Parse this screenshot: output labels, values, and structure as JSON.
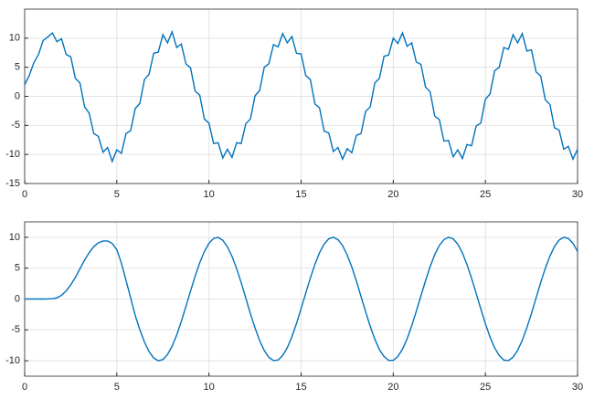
{
  "chart_data": [
    {
      "type": "line",
      "grid": true,
      "xlim": [
        0,
        30
      ],
      "xticks": [
        0,
        5,
        10,
        15,
        20,
        25,
        30
      ],
      "ylim": [
        -15,
        15
      ],
      "yticks": [
        -15,
        -10,
        -5,
        0,
        5,
        10
      ],
      "x": [
        0,
        0.25,
        0.5,
        0.75,
        1,
        1.25,
        1.5,
        1.75,
        2,
        2.25,
        2.5,
        2.75,
        3,
        3.25,
        3.5,
        3.75,
        4,
        4.25,
        4.5,
        4.75,
        5,
        5.25,
        5.5,
        5.75,
        6,
        6.25,
        6.5,
        6.75,
        7,
        7.25,
        7.5,
        7.75,
        8,
        8.25,
        8.5,
        8.75,
        9,
        9.25,
        9.5,
        9.75,
        10,
        10.25,
        10.5,
        10.75,
        11,
        11.25,
        11.5,
        11.75,
        12,
        12.25,
        12.5,
        12.75,
        13,
        13.25,
        13.5,
        13.75,
        14,
        14.25,
        14.5,
        14.75,
        15,
        15.25,
        15.5,
        15.75,
        16,
        16.25,
        16.5,
        16.75,
        17,
        17.25,
        17.5,
        17.75,
        18,
        18.25,
        18.5,
        18.75,
        19,
        19.25,
        19.5,
        19.75,
        20,
        20.25,
        20.5,
        20.75,
        21,
        21.25,
        21.5,
        21.75,
        22,
        22.25,
        22.5,
        22.75,
        23,
        23.25,
        23.5,
        23.75,
        24,
        24.25,
        24.5,
        24.75,
        25,
        25.25,
        25.5,
        25.75,
        26,
        26.25,
        26.5,
        26.75,
        27,
        27.25,
        27.5,
        27.75,
        28,
        28.25,
        28.5,
        28.75,
        29,
        29.25,
        29.5,
        29.75,
        30
      ],
      "series": [
        {
          "color": "#0072bd",
          "values": [
            2,
            3.6,
            5.8,
            7.2,
            9.6,
            10.2,
            10.9,
            9.4,
            9.9,
            7.2,
            6.8,
            3.1,
            2.3,
            -1.8,
            -2.9,
            -6.4,
            -6.9,
            -9.6,
            -8.8,
            -11.2,
            -9.2,
            -9.8,
            -6.4,
            -5.9,
            -2.1,
            -1.2,
            2.9,
            3.8,
            7.4,
            7.6,
            10.6,
            9.2,
            11.1,
            8.4,
            9.0,
            5.6,
            4.9,
            0.9,
            0.2,
            -3.9,
            -4.6,
            -8.1,
            -8.0,
            -10.6,
            -9.1,
            -10.5,
            -8.0,
            -8.1,
            -4.7,
            -3.9,
            0.1,
            1.0,
            5.0,
            5.6,
            8.9,
            8.5,
            10.8,
            9.2,
            10.3,
            7.4,
            7.3,
            3.6,
            2.9,
            -1.3,
            -2.0,
            -6.0,
            -6.3,
            -9.5,
            -8.8,
            -10.8,
            -9.0,
            -9.7,
            -6.7,
            -6.4,
            -2.6,
            -1.8,
            2.3,
            3.1,
            6.9,
            7.1,
            10.0,
            9.1,
            10.9,
            8.6,
            9.2,
            5.9,
            5.5,
            1.6,
            0.8,
            -3.4,
            -4.0,
            -7.7,
            -7.6,
            -10.4,
            -9.2,
            -10.7,
            -8.3,
            -8.5,
            -5.1,
            -4.6,
            -0.5,
            0.4,
            4.4,
            5.0,
            8.4,
            8.1,
            10.6,
            9.2,
            10.8,
            7.8,
            8.0,
            4.2,
            3.5,
            -0.6,
            -1.4,
            -5.4,
            -5.8,
            -9.1,
            -8.6,
            -10.8,
            -9.1
          ]
        }
      ]
    },
    {
      "type": "line",
      "grid": true,
      "xlim": [
        0,
        30
      ],
      "xticks": [
        0,
        5,
        10,
        15,
        20,
        25,
        30
      ],
      "ylim": [
        -12.5,
        12.5
      ],
      "yticks": [
        -10,
        -5,
        0,
        5,
        10
      ],
      "x": [
        0,
        0.25,
        0.5,
        0.75,
        1,
        1.25,
        1.5,
        1.75,
        2,
        2.25,
        2.5,
        2.75,
        3,
        3.25,
        3.5,
        3.75,
        4,
        4.25,
        4.5,
        4.75,
        5,
        5.25,
        5.5,
        5.75,
        6,
        6.25,
        6.5,
        6.75,
        7,
        7.25,
        7.5,
        7.75,
        8,
        8.25,
        8.5,
        8.75,
        9,
        9.25,
        9.5,
        9.75,
        10,
        10.25,
        10.5,
        10.75,
        11,
        11.25,
        11.5,
        11.75,
        12,
        12.25,
        12.5,
        12.75,
        13,
        13.25,
        13.5,
        13.75,
        14,
        14.25,
        14.5,
        14.75,
        15,
        15.25,
        15.5,
        15.75,
        16,
        16.25,
        16.5,
        16.75,
        17,
        17.25,
        17.5,
        17.75,
        18,
        18.25,
        18.5,
        18.75,
        19,
        19.25,
        19.5,
        19.75,
        20,
        20.25,
        20.5,
        20.75,
        21,
        21.25,
        21.5,
        21.75,
        22,
        22.25,
        22.5,
        22.75,
        23,
        23.25,
        23.5,
        23.75,
        24,
        24.25,
        24.5,
        24.75,
        25,
        25.25,
        25.5,
        25.75,
        26,
        26.25,
        26.5,
        26.75,
        27,
        27.25,
        27.5,
        27.75,
        28,
        28.25,
        28.5,
        28.75,
        29,
        29.25,
        29.5,
        29.75,
        30
      ],
      "series": [
        {
          "color": "#0072bd",
          "values": [
            0,
            0,
            0,
            0,
            0,
            0.01,
            0.05,
            0.2,
            0.6,
            1.3,
            2.3,
            3.5,
            4.9,
            6.3,
            7.5,
            8.5,
            9.1,
            9.4,
            9.4,
            9.0,
            8.0,
            5.8,
            3.0,
            0.2,
            -2.67,
            -4.98,
            -6.97,
            -8.53,
            -9.55,
            -10.0,
            -9.8,
            -9.0,
            -7.65,
            -5.82,
            -3.62,
            -1.21,
            1.29,
            3.71,
            5.88,
            7.69,
            9.04,
            9.82,
            9.98,
            9.52,
            8.48,
            6.92,
            4.93,
            2.63,
            0.13,
            -2.37,
            -4.69,
            -6.73,
            -8.34,
            -9.45,
            -9.97,
            -9.89,
            -9.14,
            -7.88,
            -6.12,
            -3.96,
            -1.55,
            0.94,
            3.39,
            5.63,
            7.51,
            8.91,
            9.76,
            10.0,
            9.62,
            8.66,
            7.14,
            5.19,
            2.91,
            0.42,
            -2.05,
            -4.42,
            -6.5,
            -8.19,
            -9.33,
            -9.94,
            -9.93,
            -9.3,
            -8.14,
            -6.45,
            -4.35,
            -1.99,
            0.5,
            2.96,
            5.23,
            7.18,
            8.68,
            9.63,
            10.0,
            9.76,
            8.89,
            7.48,
            5.59,
            3.35,
            0.9,
            -1.59,
            -3.99,
            -6.15,
            -7.91,
            -9.15,
            -9.9,
            -9.97,
            -9.43,
            -8.31,
            -6.7,
            -4.65,
            -2.32,
            0.17,
            2.66,
            4.98,
            6.95,
            8.51,
            9.55,
            10.0,
            9.81,
            9.03,
            7.7
          ]
        }
      ]
    }
  ]
}
